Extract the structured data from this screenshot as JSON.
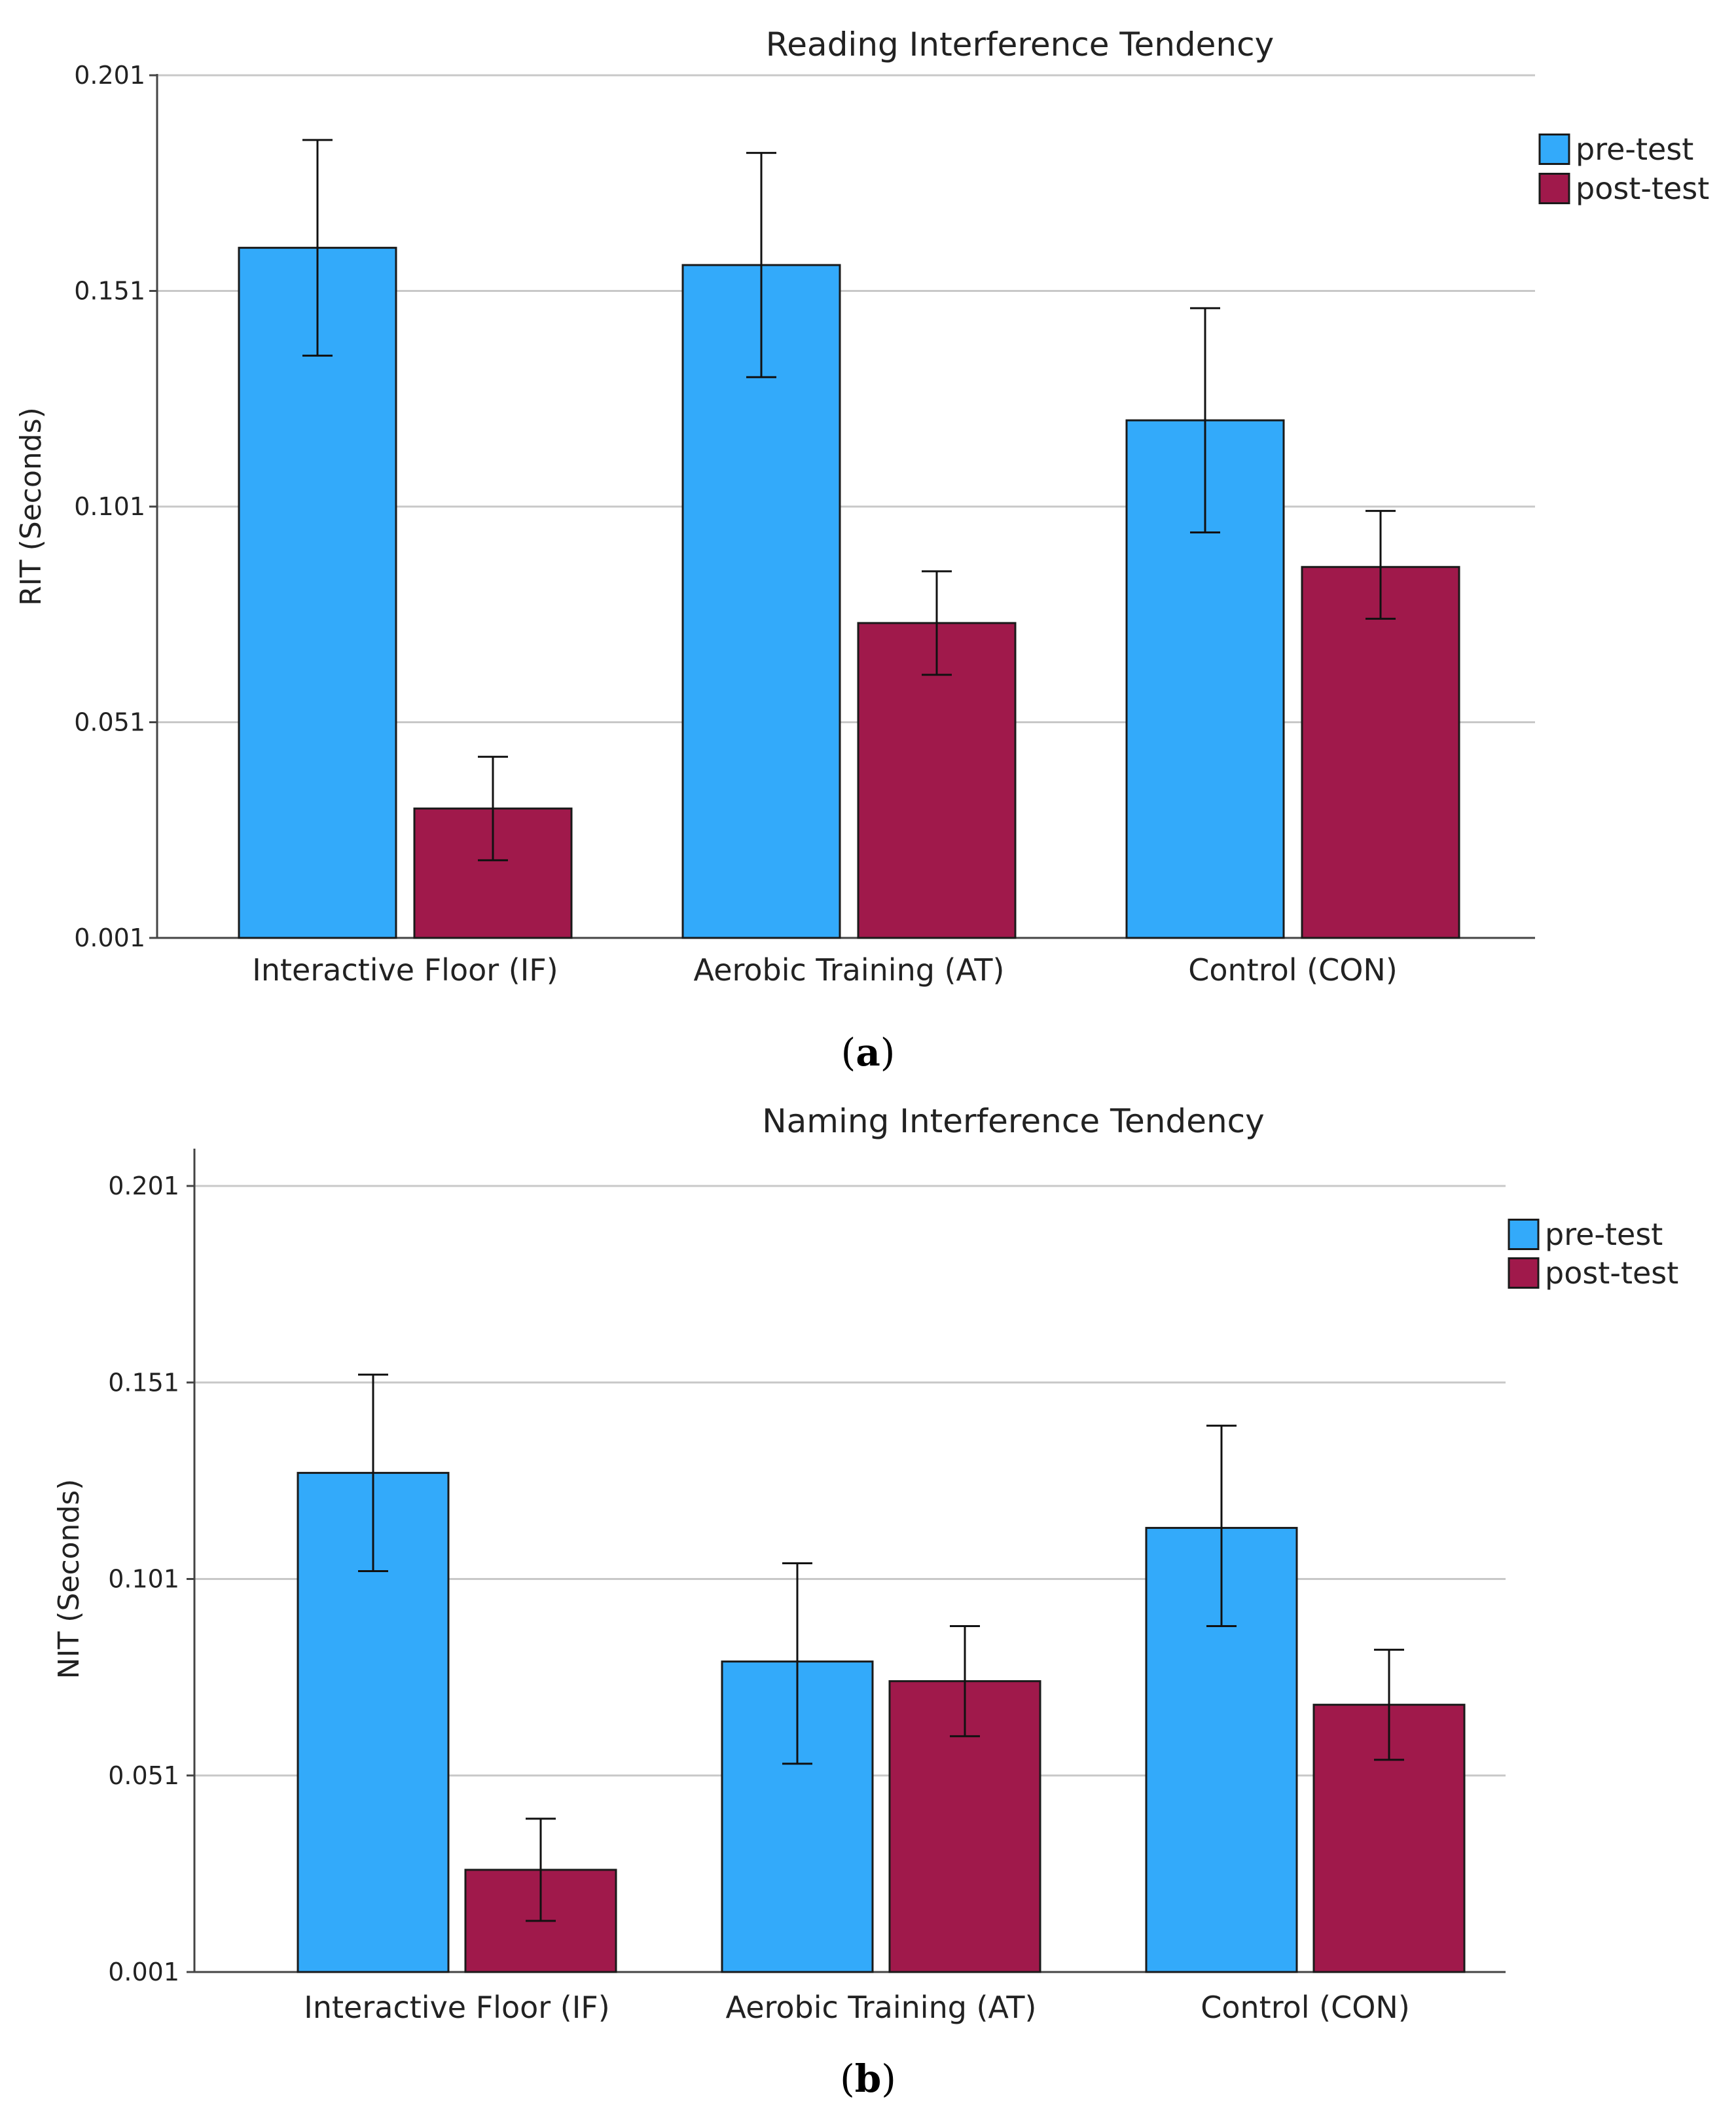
{
  "chart_data": [
    {
      "type": "bar",
      "panel": "a",
      "title": "Reading Interference Tendency",
      "xlabel": "",
      "ylabel": "RIT (Seconds)",
      "ylim": [
        0.001,
        0.201
      ],
      "yticks": [
        "0.001",
        "0.051",
        "0.101",
        "0.151",
        "0.201"
      ],
      "grid": true,
      "legend_position": "top-right",
      "categories": [
        "Interactive Floor (IF)",
        "Aerobic Training (AT)",
        "Control (CON)"
      ],
      "series": [
        {
          "name": "pre-test",
          "color": "#33aafa",
          "values": [
            0.161,
            0.157,
            0.121
          ],
          "error_low": [
            0.136,
            0.131,
            0.095
          ],
          "error_high": [
            0.186,
            0.183,
            0.147
          ]
        },
        {
          "name": "post-test",
          "color": "#a0194b",
          "values": [
            0.031,
            0.074,
            0.087
          ],
          "error_low": [
            0.019,
            0.062,
            0.075
          ],
          "error_high": [
            0.043,
            0.086,
            0.1
          ]
        }
      ]
    },
    {
      "type": "bar",
      "panel": "b",
      "title": "Naming Interference Tendency",
      "xlabel": "",
      "ylabel": "NIT (Seconds)",
      "ylim": [
        0.001,
        0.201
      ],
      "yticks": [
        "0.001",
        "0.051",
        "0.101",
        "0.151",
        "0.201"
      ],
      "grid": true,
      "legend_position": "top-right",
      "categories": [
        "Interactive Floor (IF)",
        "Aerobic Training (AT)",
        "Control (CON)"
      ],
      "series": [
        {
          "name": "pre-test",
          "color": "#33aafa",
          "values": [
            0.128,
            0.08,
            0.114
          ],
          "error_low": [
            0.103,
            0.054,
            0.089
          ],
          "error_high": [
            0.153,
            0.105,
            0.14
          ]
        },
        {
          "name": "post-test",
          "color": "#a0194b",
          "values": [
            0.027,
            0.075,
            0.069
          ],
          "error_low": [
            0.014,
            0.061,
            0.055
          ],
          "error_high": [
            0.04,
            0.089,
            0.083
          ]
        }
      ]
    }
  ],
  "panel_labels": [
    {
      "open": "(",
      "letter": "a",
      "close": ")"
    },
    {
      "open": "(",
      "letter": "b",
      "close": ")"
    }
  ]
}
